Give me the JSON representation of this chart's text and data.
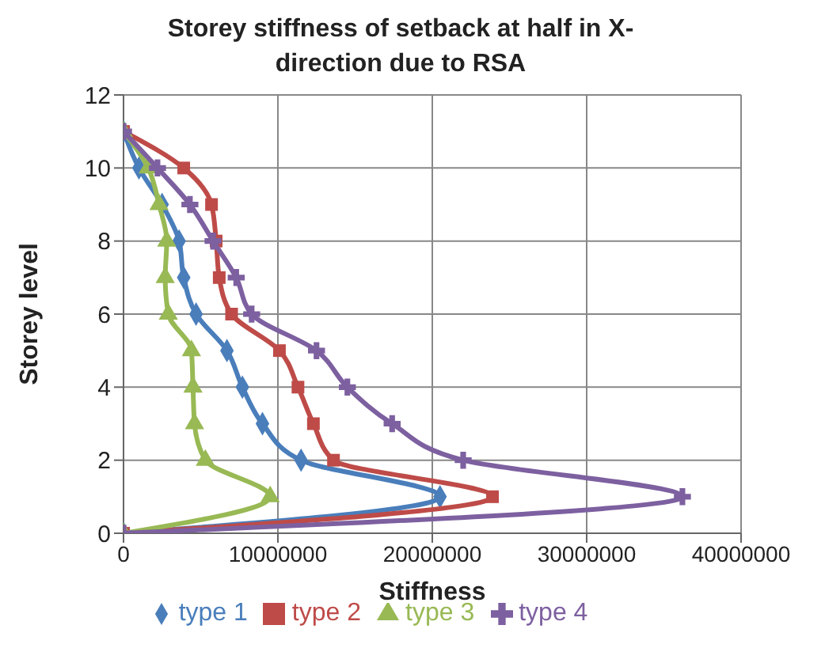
{
  "chart_data": {
    "type": "line",
    "title": "Storey stiffness of setback at half in X-direction due to RSA",
    "xlabel": "Stiffness",
    "ylabel": "Storey level",
    "xlim": [
      0,
      40000000
    ],
    "xticks": [
      0,
      10000000,
      20000000,
      30000000,
      40000000
    ],
    "ylim": [
      0,
      12
    ],
    "yticks": [
      0,
      2,
      4,
      6,
      8,
      10,
      12
    ],
    "grid": true,
    "legend": "bottom",
    "series": [
      {
        "name": "type 1",
        "color": "#4a7ebb",
        "marker": "diamond",
        "x": [
          0,
          20500000,
          11500000,
          9000000,
          7700000,
          6700000,
          4700000,
          3900000,
          3600000,
          2500000,
          1000000,
          0
        ],
        "values": [
          0,
          1,
          2,
          3,
          4,
          5,
          6,
          7,
          8,
          9,
          10,
          11
        ]
      },
      {
        "name": "type 2",
        "color": "#be4b48",
        "marker": "square",
        "x": [
          0,
          23900000,
          13600000,
          12300000,
          11300000,
          10100000,
          7000000,
          6200000,
          6000000,
          5700000,
          3900000,
          0
        ],
        "values": [
          0,
          1,
          2,
          3,
          4,
          5,
          6,
          7,
          8,
          9,
          10,
          11
        ]
      },
      {
        "name": "type 3",
        "color": "#98b954",
        "marker": "triangle",
        "x": [
          0,
          9500000,
          5300000,
          4600000,
          4500000,
          4400000,
          2900000,
          2700000,
          2800000,
          2300000,
          1600000,
          0
        ],
        "values": [
          0,
          1,
          2,
          3,
          4,
          5,
          6,
          7,
          8,
          9,
          10,
          11
        ]
      },
      {
        "name": "type 4",
        "color": "#7d60a0",
        "marker": "cross",
        "x": [
          0,
          36200000,
          22000000,
          17400000,
          14500000,
          12500000,
          8300000,
          7300000,
          5800000,
          4300000,
          2200000,
          0
        ],
        "values": [
          0,
          1,
          2,
          3,
          4,
          5,
          6,
          7,
          8,
          9,
          10,
          11
        ]
      }
    ]
  }
}
